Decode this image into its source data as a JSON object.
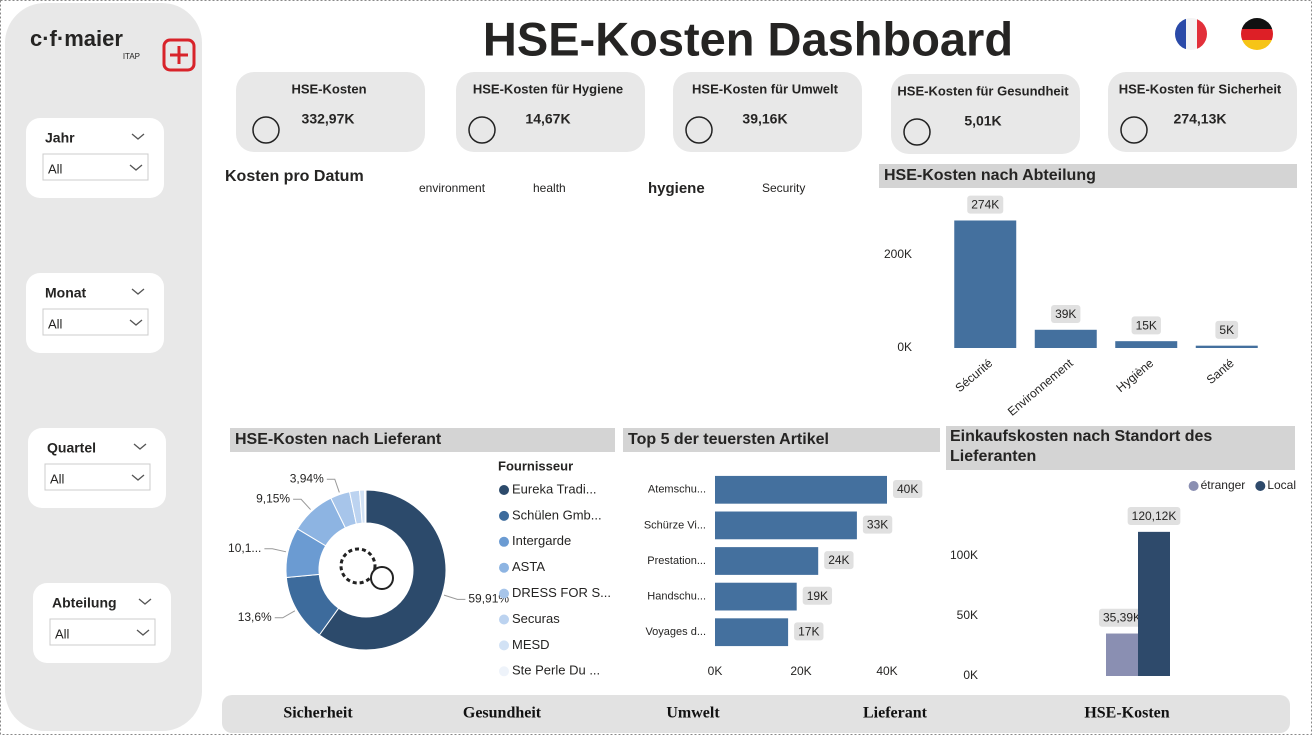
{
  "sidebar": {
    "logo": "c·f·maier",
    "logo_sub": "ITAP",
    "filters": [
      {
        "label": "Jahr",
        "value": "All"
      },
      {
        "label": "Monat",
        "value": "All"
      },
      {
        "label": "Quartel",
        "value": "All"
      },
      {
        "label": "Abteilung",
        "value": "All"
      }
    ]
  },
  "header": {
    "title": "HSE-Kosten Dashboard"
  },
  "kpis": [
    {
      "label": "HSE-Kosten",
      "value": "332,97K"
    },
    {
      "label": "HSE-Kosten für Hygiene",
      "value": "14,67K"
    },
    {
      "label": "HSE-Kosten für Umwelt",
      "value": "39,16K"
    },
    {
      "label": "HSE-Kosten für Gesundheit",
      "value": "5,01K"
    },
    {
      "label": "HSE-Kosten für Sicherheit",
      "value": "274,13K"
    }
  ],
  "kosten_pro_datum": {
    "title": "Kosten pro Datum",
    "legend": [
      "environment",
      "health",
      "hygiene",
      "Security"
    ]
  },
  "chart_data": [
    {
      "type": "bar",
      "title": "HSE-Kosten nach Abteilung",
      "categories": [
        "Sécurité",
        "Environnement",
        "Hygiène",
        "Santé"
      ],
      "values": [
        274130,
        39160,
        14670,
        5010
      ],
      "value_labels": [
        "274K",
        "39K",
        "15K",
        "5K"
      ],
      "color": "#44709e",
      "ylim": [
        0,
        330000
      ],
      "yticks": [
        {
          "value": 0,
          "label": "0K"
        },
        {
          "value": 200000,
          "label": "200K"
        }
      ],
      "grid": false
    },
    {
      "type": "donut",
      "title": "HSE-Kosten nach Lieferant",
      "legend_title": "Fournisseur",
      "categories": [
        "Eureka Tradi...",
        "Schülen Gmb...",
        "Intergarde",
        "ASTA",
        "DRESS FOR S...",
        "Securas",
        "MESD",
        "Ste Perle Du ..."
      ],
      "values": [
        59.91,
        13.6,
        10.1,
        9.15,
        3.94,
        2,
        1,
        0.3
      ],
      "value_labels": [
        "59,91%",
        "13,6%",
        "10,1...",
        "9,15%",
        "3,94%",
        null,
        null,
        null
      ],
      "colors": [
        "#2c4a6b",
        "#3d6b9c",
        "#6b9bd2",
        "#8db4e2",
        "#a7c5ea",
        "#bcd3f0",
        "#d2e2f5",
        "#eef3fa"
      ]
    },
    {
      "type": "bar",
      "orientation": "horizontal",
      "title": "Top 5 der teuersten Artikel",
      "categories": [
        "Atemschu...",
        "Schürze Vi...",
        "Prestation...",
        "Handschu...",
        "Voyages d..."
      ],
      "values": [
        40000,
        33000,
        24000,
        19000,
        17000
      ],
      "value_labels": [
        "40K",
        "33K",
        "24K",
        "19K",
        "17K"
      ],
      "color": "#44709e",
      "xlim": [
        0,
        40000
      ],
      "xticks": [
        {
          "value": 0,
          "label": "0K"
        },
        {
          "value": 20000,
          "label": "20K"
        },
        {
          "value": 40000,
          "label": "40K"
        }
      ]
    },
    {
      "type": "bar",
      "title": "Einkaufskosten nach Standort des Lieferanten",
      "categories": [
        null
      ],
      "series": [
        {
          "name": "étranger",
          "color": "#8a8fb2",
          "values": [
            35390
          ],
          "value_labels": [
            "35,39K"
          ]
        },
        {
          "name": "Local",
          "color": "#2e4a6b",
          "values": [
            120120
          ],
          "value_labels": [
            "120,12K"
          ]
        }
      ],
      "ylim": [
        0,
        145000
      ],
      "yticks": [
        {
          "value": 0,
          "label": "0K"
        },
        {
          "value": 50000,
          "label": "50K"
        },
        {
          "value": 100000,
          "label": "100K"
        }
      ],
      "legend": "top-right",
      "grid": false
    }
  ],
  "nav": [
    "Sicherheit",
    "Gesundheit",
    "Umwelt",
    "Lieferant",
    "HSE-Kosten"
  ]
}
